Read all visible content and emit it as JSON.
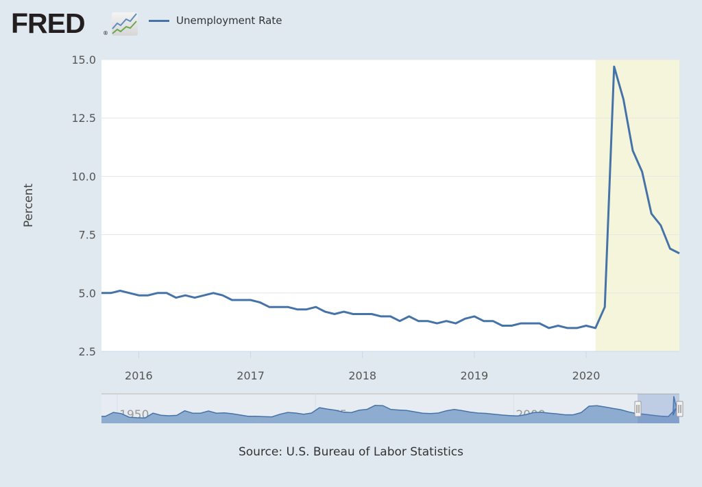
{
  "header": {
    "logo_text": "FRED",
    "logo_mark": "®",
    "logo_icon": "line-chart-icon"
  },
  "legend": {
    "label": "Unemployment Rate",
    "color": "#4572a7"
  },
  "source": "Source: U.S. Bureau of Labor Statistics",
  "chart_data": {
    "type": "line",
    "title": "",
    "xlabel": "",
    "ylabel": "Percent",
    "ylim": [
      2.5,
      15.0
    ],
    "yticks": [
      "2.5",
      "5.0",
      "7.5",
      "10.0",
      "12.5",
      "15.0"
    ],
    "xticks": [
      "2016",
      "2017",
      "2018",
      "2019",
      "2020"
    ],
    "xlim": [
      "2015-09",
      "2020-11"
    ],
    "grid": true,
    "legend_placement": "top-left",
    "recession_shading": {
      "start": "2020-02",
      "end": "2020-11",
      "color": "#f5f5dc"
    },
    "series": [
      {
        "name": "Unemployment Rate",
        "color": "#4572a7",
        "start": "2015-09",
        "frequency": "monthly",
        "values": [
          5.0,
          5.0,
          5.1,
          5.0,
          4.9,
          4.9,
          5.0,
          5.0,
          4.8,
          4.9,
          4.8,
          4.9,
          5.0,
          4.9,
          4.7,
          4.7,
          4.7,
          4.6,
          4.4,
          4.4,
          4.4,
          4.3,
          4.3,
          4.4,
          4.2,
          4.1,
          4.2,
          4.1,
          4.1,
          4.1,
          4.0,
          4.0,
          3.8,
          4.0,
          3.8,
          3.8,
          3.7,
          3.8,
          3.7,
          3.9,
          4.0,
          3.8,
          3.8,
          3.6,
          3.6,
          3.7,
          3.7,
          3.7,
          3.5,
          3.6,
          3.5,
          3.5,
          3.6,
          3.5,
          4.4,
          14.7,
          13.3,
          11.1,
          10.2,
          8.4,
          7.9,
          6.9,
          6.7
        ]
      }
    ],
    "navigator": {
      "xticks": [
        "1950",
        "1975",
        "2000"
      ],
      "range": [
        "1948",
        "2020-11"
      ],
      "selected": [
        "2015-09",
        "2020-11"
      ],
      "start_year": 1948,
      "annual_values": [
        3.8,
        5.9,
        5.3,
        3.3,
        3.0,
        2.9,
        5.5,
        4.4,
        4.1,
        4.3,
        6.8,
        5.5,
        5.5,
        6.7,
        5.5,
        5.7,
        5.2,
        4.5,
        3.8,
        3.8,
        3.6,
        3.5,
        4.9,
        5.9,
        5.6,
        4.9,
        5.6,
        8.5,
        7.7,
        7.1,
        6.1,
        5.8,
        7.1,
        7.6,
        9.7,
        9.6,
        7.5,
        7.2,
        7.0,
        6.2,
        5.5,
        5.3,
        5.6,
        6.8,
        7.5,
        6.9,
        6.1,
        5.6,
        5.4,
        4.9,
        4.5,
        4.2,
        4.0,
        4.7,
        5.8,
        6.0,
        5.5,
        5.1,
        4.6,
        4.6,
        5.8,
        9.3,
        9.6,
        8.9,
        8.1,
        7.4,
        6.2,
        5.3,
        4.9,
        4.4,
        3.9,
        3.7,
        8.1
      ]
    }
  }
}
